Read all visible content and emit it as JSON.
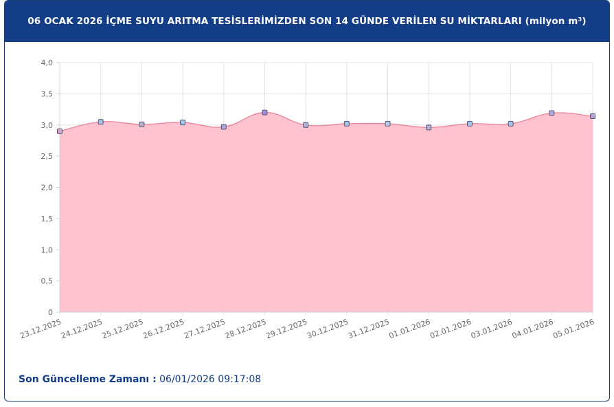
{
  "header": {
    "title": "06 OCAK 2026 İÇME SUYU ARITMA TESİSLERİMİZDEN SON 14 GÜNDE VERİLEN SU MİKTARLARI (milyon m³)"
  },
  "footer": {
    "update_label": "Son Güncelleme Zamanı :",
    "update_value": "06/01/2026 09:17:08"
  },
  "colors": {
    "header_bg": "#133d86",
    "area_fill": "#ffc2cf",
    "line": "#e8859b",
    "text_accent": "#133d86"
  },
  "chart_data": {
    "type": "area",
    "categories": [
      "23.12.2025",
      "24.12.2025",
      "25.12.2025",
      "26.12.2025",
      "27.12.2025",
      "28.12.2025",
      "29.12.2025",
      "30.12.2025",
      "31.12.2025",
      "01.01.2026",
      "02.01.2026",
      "03.01.2026",
      "04.01.2026",
      "05.01.2026"
    ],
    "values": [
      2.9,
      3.05,
      3.01,
      3.04,
      2.97,
      3.2,
      3.0,
      3.02,
      3.02,
      2.96,
      3.02,
      3.02,
      3.19,
      3.14
    ],
    "y_ticks": [
      "0",
      "0,5",
      "1,0",
      "1,5",
      "2,0",
      "2,5",
      "3,0",
      "3,5",
      "4,0"
    ],
    "ylim": [
      0,
      4
    ],
    "grid": true,
    "marker_colors": [
      "#d9a6c3",
      "#a8c4e6",
      "#b5b5cf",
      "#9fc7e8",
      "#b2a4d6",
      "#a78de0",
      "#b3b3d9",
      "#a6c3e6",
      "#b0cce0",
      "#b9b0d8",
      "#a9c4e6",
      "#a7c8e8",
      "#b6a9dc",
      "#b7a2d6"
    ]
  }
}
